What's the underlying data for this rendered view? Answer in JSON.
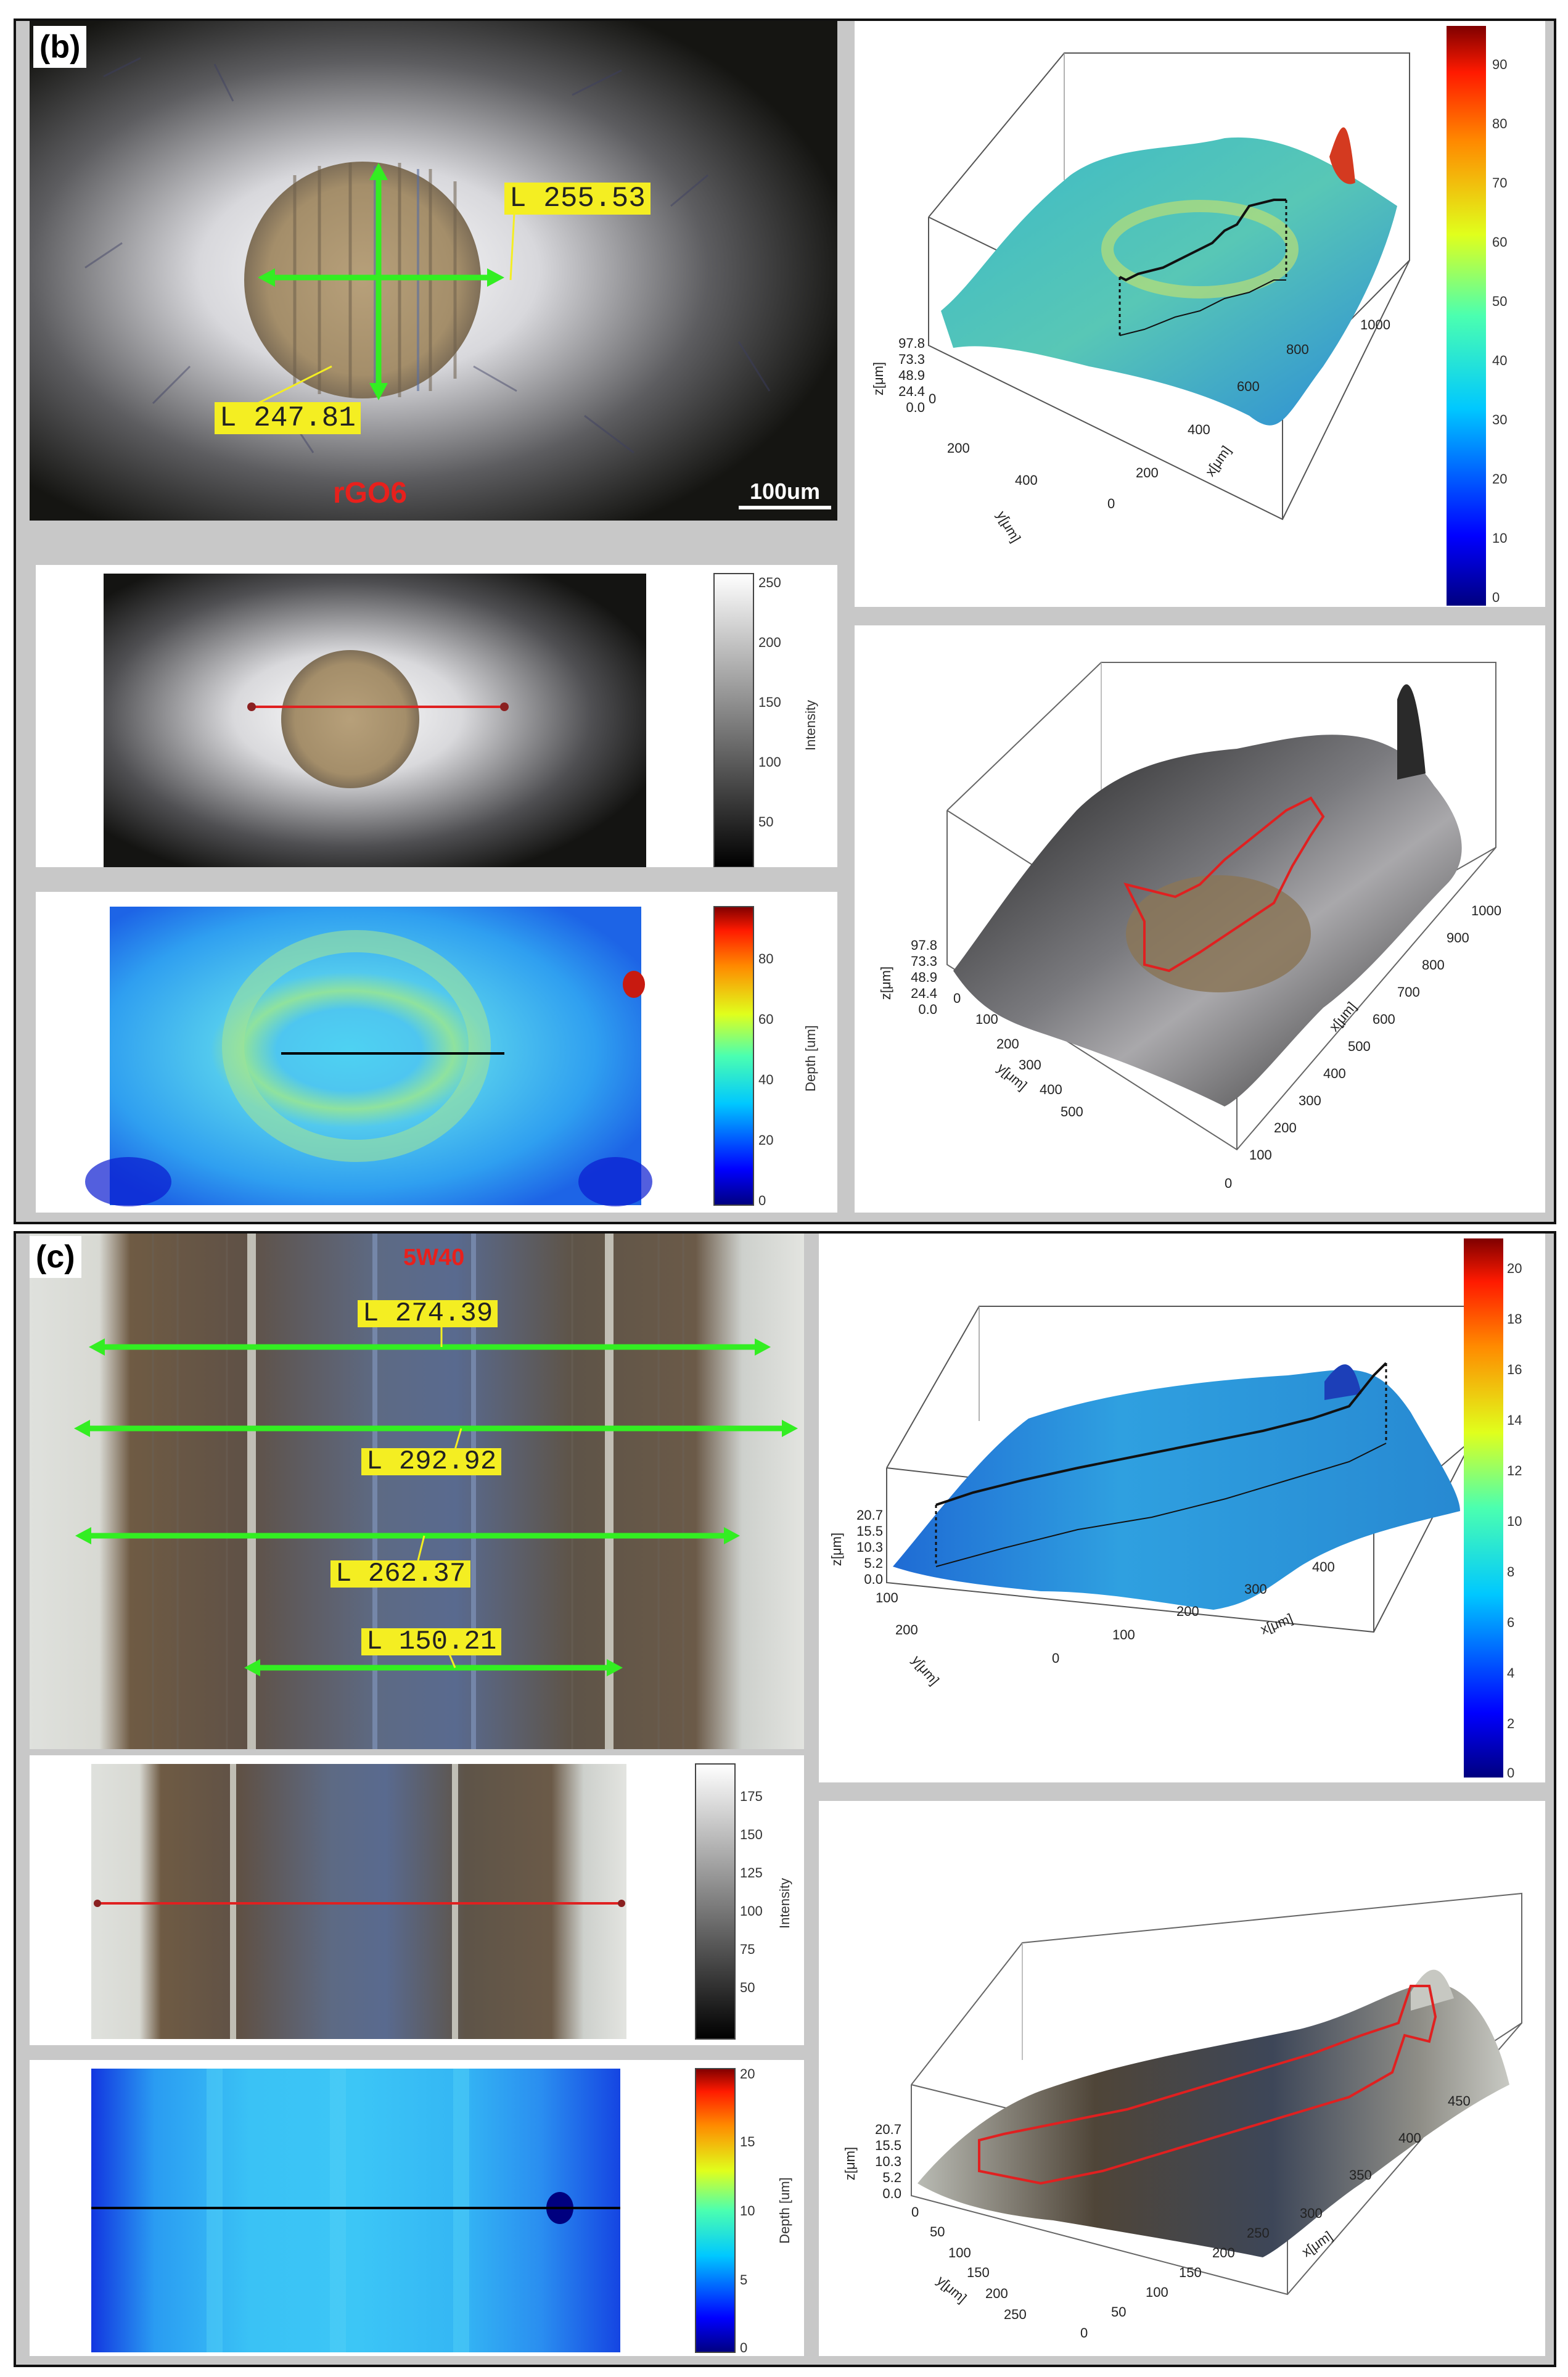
{
  "panels": [
    {
      "label": "(b)",
      "sample": "rGO6",
      "scale_bar": "100um",
      "measurements": [
        "L 255.53",
        "L 247.81"
      ],
      "intensity_scale": {
        "ticks": [
          "250",
          "200",
          "150",
          "100",
          "50"
        ],
        "label": "Intensity"
      },
      "depth_scale": {
        "ticks": [
          "80",
          "60",
          "40",
          "20",
          "0"
        ],
        "label": "Depth [um]"
      },
      "color_scale_3d": {
        "ticks": [
          "90",
          "80",
          "70",
          "60",
          "50",
          "40",
          "30",
          "20",
          "10",
          "0"
        ]
      },
      "plot3d": {
        "z_ticks": [
          "97.8",
          "73.3",
          "48.9",
          "24.4",
          "0.0"
        ],
        "z_label": "z[μm]",
        "y_ticks": [
          "0",
          "200",
          "400"
        ],
        "y_label": "y[μm]",
        "x_ticks": [
          "0",
          "200",
          "400",
          "600",
          "800",
          "1000"
        ],
        "x_label": "x[μm]"
      },
      "plot3d_textured": {
        "z_ticks": [
          "97.8",
          "73.3",
          "48.9",
          "24.4",
          "0.0"
        ],
        "z_label": "z[μm]",
        "y_ticks": [
          "0",
          "100",
          "200",
          "300",
          "400",
          "500"
        ],
        "y_label": "y[μm]",
        "x_ticks": [
          "0",
          "100",
          "200",
          "300",
          "400",
          "500",
          "600",
          "700",
          "800",
          "900",
          "1000"
        ],
        "x_label": "x[μm]"
      }
    },
    {
      "label": "(c)",
      "sample": "5W40",
      "measurements": [
        "L 274.39",
        "L 292.92",
        "L 262.37",
        "L 150.21"
      ],
      "intensity_scale": {
        "ticks": [
          "175",
          "150",
          "125",
          "100",
          "75",
          "50"
        ],
        "label": "Intensity"
      },
      "depth_scale": {
        "ticks": [
          "20",
          "15",
          "10",
          "5",
          "0"
        ],
        "label": "Depth [um]"
      },
      "color_scale_3d": {
        "ticks": [
          "20",
          "18",
          "16",
          "14",
          "12",
          "10",
          "8",
          "6",
          "4",
          "2",
          "0"
        ]
      },
      "plot3d": {
        "z_ticks": [
          "20.7",
          "15.5",
          "10.3",
          "5.2",
          "0.0"
        ],
        "z_label": "z[μm]",
        "y_ticks": [
          "100",
          "200"
        ],
        "y_label": "y[μm]",
        "x_ticks": [
          "0",
          "100",
          "200",
          "300",
          "400"
        ],
        "x_label": "x[μm]"
      },
      "plot3d_textured": {
        "z_ticks": [
          "20.7",
          "15.5",
          "10.3",
          "5.2",
          "0.0"
        ],
        "z_label": "z[μm]",
        "y_ticks": [
          "0",
          "50",
          "100",
          "150",
          "200",
          "250"
        ],
        "y_label": "y[μm]",
        "x_ticks": [
          "0",
          "50",
          "100",
          "150",
          "200",
          "250",
          "300",
          "350",
          "400",
          "450"
        ],
        "x_label": "x[μm]"
      }
    }
  ],
  "colors": {
    "measure_line": "#33ee22",
    "measure_tag": "#f4ee22",
    "profile_line_red": "#e02020",
    "sample_label": "#e8201c"
  }
}
